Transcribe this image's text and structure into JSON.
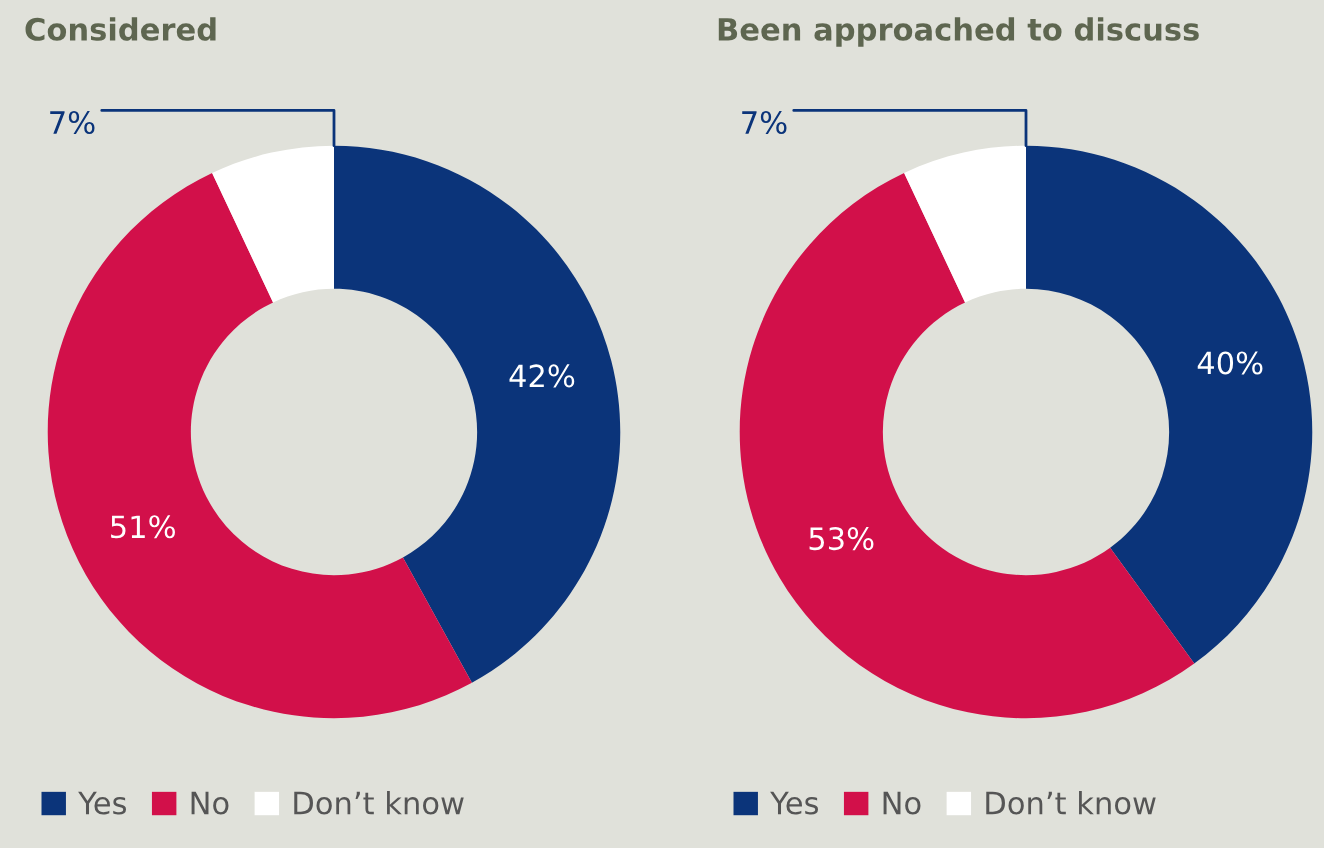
{
  "chart_data": [
    {
      "type": "donut",
      "title": "Considered",
      "categories": [
        "Yes",
        "No",
        "Don’t know"
      ],
      "values": [
        42,
        51,
        7
      ],
      "value_labels": [
        "42%",
        "51%",
        "7%"
      ],
      "colors": [
        "#0b347a",
        "#d2104a",
        "#ffffff"
      ],
      "legend": "bottom"
    },
    {
      "type": "donut",
      "title": "Been approached to discuss",
      "categories": [
        "Yes",
        "No",
        "Don’t know"
      ],
      "values": [
        40,
        53,
        7
      ],
      "value_labels": [
        "40%",
        "53%",
        "7%"
      ],
      "colors": [
        "#0b347a",
        "#d2104a",
        "#ffffff"
      ],
      "legend": "bottom"
    }
  ]
}
